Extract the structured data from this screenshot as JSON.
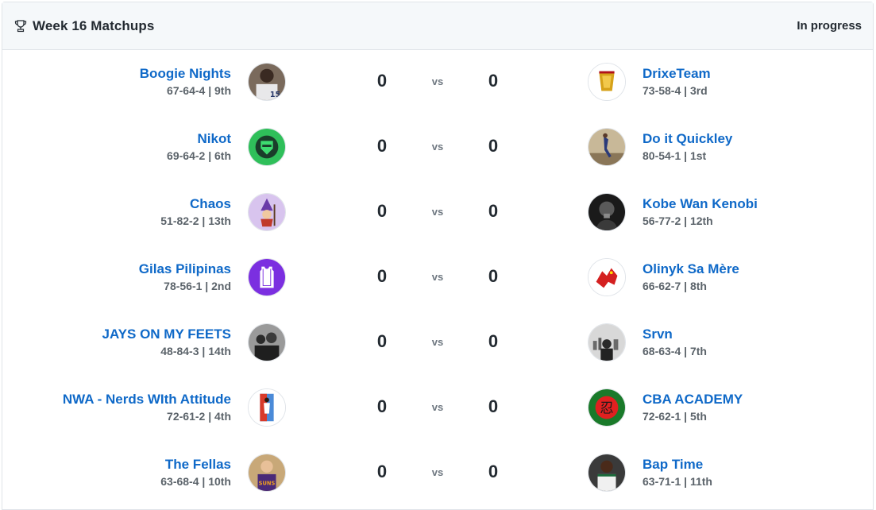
{
  "header": {
    "title": "Week 16 Matchups",
    "status": "In progress",
    "icon": "trophy-icon"
  },
  "vs_label": "vs",
  "matchups": [
    {
      "left": {
        "name": "Boogie Nights",
        "record": "67-64-4 | 9th",
        "score": "0",
        "avatar": "player-jersey-15-avatar"
      },
      "right": {
        "name": "DrixeTeam",
        "record": "73-58-4 | 3rd",
        "score": "0",
        "avatar": "gold-logo-avatar"
      }
    },
    {
      "left": {
        "name": "Nikot",
        "record": "69-64-2 | 6th",
        "score": "0",
        "avatar": "green-knight-avatar"
      },
      "right": {
        "name": "Do it Quickley",
        "record": "80-54-1 | 1st",
        "score": "0",
        "avatar": "dunk-photo-avatar"
      }
    },
    {
      "left": {
        "name": "Chaos",
        "record": "51-82-2 | 13th",
        "score": "0",
        "avatar": "purple-wizard-avatar"
      },
      "right": {
        "name": "Kobe Wan Kenobi",
        "record": "56-77-2 | 12th",
        "score": "0",
        "avatar": "bw-portrait-avatar"
      }
    },
    {
      "left": {
        "name": "Gilas Pilipinas",
        "record": "78-56-1 | 2nd",
        "score": "0",
        "avatar": "purple-jersey-avatar"
      },
      "right": {
        "name": "Olinyk Sa Mère",
        "record": "66-62-7 | 8th",
        "score": "0",
        "avatar": "red-dragon-avatar"
      }
    },
    {
      "left": {
        "name": "JAYS ON MY FEETS",
        "record": "48-84-3 | 14th",
        "score": "0",
        "avatar": "bw-group-avatar"
      },
      "right": {
        "name": "Srvn",
        "record": "68-63-4 | 7th",
        "score": "0",
        "avatar": "bw-skyline-avatar"
      }
    },
    {
      "left": {
        "name": "NWA - Nerds WIth Attitude",
        "record": "72-61-2 | 4th",
        "score": "0",
        "avatar": "player-card-avatar"
      },
      "right": {
        "name": "CBA ACADEMY",
        "record": "72-62-1 | 5th",
        "score": "0",
        "avatar": "green-red-seal-avatar"
      }
    },
    {
      "left": {
        "name": "The Fellas",
        "record": "63-68-4 | 10th",
        "score": "0",
        "avatar": "suns-player-avatar"
      },
      "right": {
        "name": "Bap Time",
        "record": "63-71-1 | 11th",
        "score": "0",
        "avatar": "celtics-player-avatar"
      }
    }
  ]
}
